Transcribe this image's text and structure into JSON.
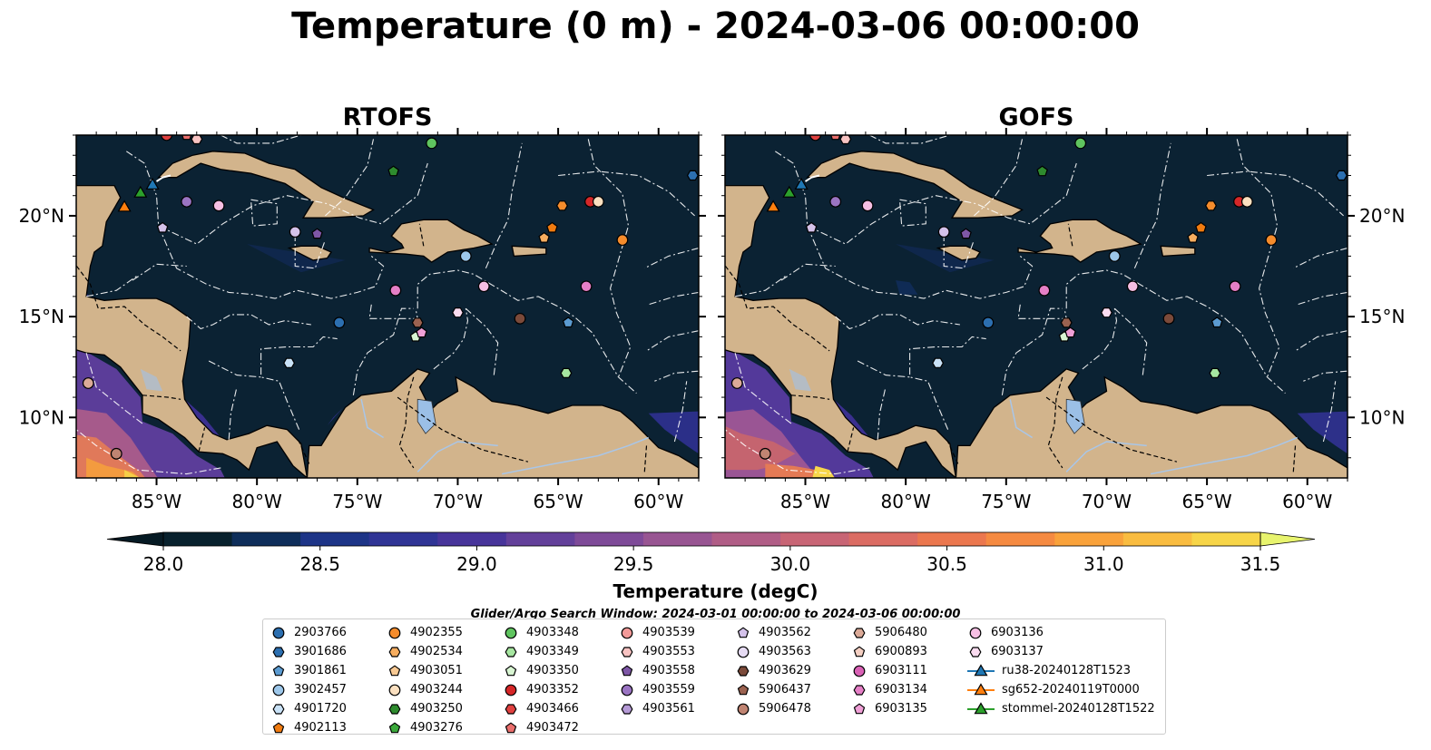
{
  "figure": {
    "title": "Temperature (0 m) - 2024-03-06 00:00:00",
    "search_window": "Glider/Argo Search Window: 2024-03-01 00:00:00 to 2024-03-06 00:00:00"
  },
  "colors": {
    "land": "#d2b48c",
    "ocean_base": "#0b2233",
    "lakes": "#9bbfe6",
    "rivers": "#a9c6e8",
    "eez_lines": "#ffffff"
  },
  "chart_data": [
    {
      "type": "map",
      "title": "RTOFS",
      "xlim": [
        -89,
        -58
      ],
      "ylim": [
        7,
        24
      ],
      "xticks": [
        "85°W",
        "80°W",
        "75°W",
        "70°W",
        "65°W",
        "60°W"
      ],
      "yticks": [
        "20°N",
        "15°N",
        "10°N"
      ]
    },
    {
      "type": "map",
      "title": "GOFS",
      "xlim": [
        -89,
        -58
      ],
      "ylim": [
        7,
        24
      ],
      "xticks": [
        "85°W",
        "80°W",
        "75°W",
        "70°W",
        "65°W",
        "60°W"
      ],
      "yticks": [
        "20°N",
        "15°N",
        "10°N"
      ]
    }
  ],
  "colorbar": {
    "label": "Temperature (degC)",
    "min": 28.0,
    "max": 31.5,
    "step": 0.25,
    "extend": "both",
    "ticks": [
      "28.0",
      "28.5",
      "29.0",
      "29.5",
      "30.0",
      "30.5",
      "31.0",
      "31.5"
    ],
    "colors": [
      "#08212d",
      "#0e2e5a",
      "#1d3487",
      "#2f3495",
      "#47349a",
      "#63409a",
      "#7e4a98",
      "#985592",
      "#b05d86",
      "#c86575",
      "#db6c63",
      "#eb774e",
      "#f58a41",
      "#f9a23b",
      "#f9bc40",
      "#f7d548"
    ],
    "under_color": "#061a24",
    "over_color": "#e8f46e"
  },
  "legend": {
    "columns": [
      [
        {
          "label": "2903766",
          "marker": "circle",
          "color": "#2c6fb0"
        },
        {
          "label": "3901686",
          "marker": "hexagon",
          "color": "#2c6fb0"
        },
        {
          "label": "3901861",
          "marker": "pentagon",
          "color": "#5b9bd1"
        },
        {
          "label": "3902457",
          "marker": "circle",
          "color": "#9dc7ea"
        },
        {
          "label": "4901720",
          "marker": "hexagon",
          "color": "#c9e2f7"
        },
        {
          "label": "4902113",
          "marker": "pentagon",
          "color": "#f07b10"
        }
      ],
      [
        {
          "label": "4902355",
          "marker": "circle",
          "color": "#f58c2c"
        },
        {
          "label": "4902534",
          "marker": "hexagon",
          "color": "#f6ad5f"
        },
        {
          "label": "4903051",
          "marker": "pentagon",
          "color": "#f8c993"
        },
        {
          "label": "4903244",
          "marker": "circle",
          "color": "#fbe0c0"
        },
        {
          "label": "4903250",
          "marker": "hexagon",
          "color": "#2e8b2e"
        },
        {
          "label": "4903276",
          "marker": "pentagon",
          "color": "#3aa83a"
        }
      ],
      [
        {
          "label": "4903348",
          "marker": "circle",
          "color": "#5fc45f"
        },
        {
          "label": "4903349",
          "marker": "hexagon",
          "color": "#a6e6a0"
        },
        {
          "label": "4903350",
          "marker": "pentagon",
          "color": "#d8f5d2"
        },
        {
          "label": "4903352",
          "marker": "circle",
          "color": "#d62728"
        },
        {
          "label": "4903466",
          "marker": "hexagon",
          "color": "#e0403f"
        },
        {
          "label": "4903472",
          "marker": "pentagon",
          "color": "#ea6e6c"
        }
      ],
      [
        {
          "label": "4903539",
          "marker": "circle",
          "color": "#f29a99"
        },
        {
          "label": "4903553",
          "marker": "hexagon",
          "color": "#f8c3c2"
        },
        {
          "label": "4903558",
          "marker": "pentagon",
          "color": "#7e57a6"
        },
        {
          "label": "4903559",
          "marker": "circle",
          "color": "#9a74c2"
        },
        {
          "label": "4903561",
          "marker": "hexagon",
          "color": "#b59ad6"
        }
      ],
      [
        {
          "label": "4903562",
          "marker": "pentagon",
          "color": "#d4c2ea"
        },
        {
          "label": "4903563",
          "marker": "circle",
          "color": "#e6dbf3"
        },
        {
          "label": "4903629",
          "marker": "hexagon",
          "color": "#7b4a3a"
        },
        {
          "label": "5906437",
          "marker": "pentagon",
          "color": "#9b6250"
        },
        {
          "label": "5906478",
          "marker": "circle",
          "color": "#c08472"
        }
      ],
      [
        {
          "label": "5906480",
          "marker": "hexagon",
          "color": "#dbaa98"
        },
        {
          "label": "6900893",
          "marker": "pentagon",
          "color": "#f4cfc2"
        },
        {
          "label": "6903111",
          "marker": "circle",
          "color": "#d961b5"
        },
        {
          "label": "6903134",
          "marker": "hexagon",
          "color": "#e57fc6"
        },
        {
          "label": "6903135",
          "marker": "pentagon",
          "color": "#ef9fd6"
        }
      ],
      [
        {
          "label": "6903136",
          "marker": "circle",
          "color": "#f6bfe3"
        },
        {
          "label": "6903137",
          "marker": "hexagon",
          "color": "#fbdcf0"
        },
        {
          "label": "ru38-20240128T1523",
          "marker": "triangle",
          "color": "#1f77b4"
        },
        {
          "label": "sg652-20240119T0000",
          "marker": "triangle",
          "color": "#ff7f0e"
        },
        {
          "label": "stommel-20240128T1522",
          "marker": "triangle",
          "color": "#2ca02c"
        }
      ]
    ]
  },
  "floats": [
    {
      "lon": -84.5,
      "lat": 24.0,
      "marker": "circle",
      "color": "#e0403f"
    },
    {
      "lon": -83.5,
      "lat": 24.0,
      "marker": "pentagon",
      "color": "#ea6e6c"
    },
    {
      "lon": -83.0,
      "lat": 23.8,
      "marker": "hexagon",
      "color": "#f8c3c2"
    },
    {
      "lon": -71.3,
      "lat": 23.6,
      "marker": "circle",
      "color": "#5fc45f"
    },
    {
      "lon": -73.2,
      "lat": 22.2,
      "marker": "pentagon",
      "color": "#2e8b2e"
    },
    {
      "lon": -58.3,
      "lat": 22.0,
      "marker": "hexagon",
      "color": "#2c6fb0"
    },
    {
      "lon": -83.5,
      "lat": 20.7,
      "marker": "circle",
      "color": "#9a74c2"
    },
    {
      "lon": -81.9,
      "lat": 20.5,
      "marker": "circle",
      "color": "#f6bfe3"
    },
    {
      "lon": -64.8,
      "lat": 20.5,
      "marker": "hexagon",
      "color": "#f58c2c"
    },
    {
      "lon": -63.4,
      "lat": 20.7,
      "marker": "circle",
      "color": "#d62728"
    },
    {
      "lon": -63.0,
      "lat": 20.7,
      "marker": "circle",
      "color": "#fbe0c0"
    },
    {
      "lon": -84.7,
      "lat": 19.4,
      "marker": "pentagon",
      "color": "#d4c2ea"
    },
    {
      "lon": -78.1,
      "lat": 19.2,
      "marker": "circle",
      "color": "#d4c2ea"
    },
    {
      "lon": -77.0,
      "lat": 19.1,
      "marker": "pentagon",
      "color": "#7e57a6"
    },
    {
      "lon": -65.3,
      "lat": 19.4,
      "marker": "pentagon",
      "color": "#f07b10"
    },
    {
      "lon": -65.7,
      "lat": 18.9,
      "marker": "pentagon",
      "color": "#f6ad5f"
    },
    {
      "lon": -61.8,
      "lat": 18.8,
      "marker": "circle",
      "color": "#f58c2c"
    },
    {
      "lon": -69.6,
      "lat": 18.0,
      "marker": "circle",
      "color": "#9dc7ea"
    },
    {
      "lon": -73.1,
      "lat": 16.3,
      "marker": "circle",
      "color": "#e57fc6"
    },
    {
      "lon": -68.7,
      "lat": 16.5,
      "marker": "circle",
      "color": "#f6bfe3"
    },
    {
      "lon": -63.6,
      "lat": 16.5,
      "marker": "circle",
      "color": "#e57fc6"
    },
    {
      "lon": -70.0,
      "lat": 15.2,
      "marker": "hexagon",
      "color": "#fbdcf0"
    },
    {
      "lon": -75.9,
      "lat": 14.7,
      "marker": "circle",
      "color": "#2c6fb0"
    },
    {
      "lon": -72.0,
      "lat": 14.7,
      "marker": "hexagon",
      "color": "#9b6250"
    },
    {
      "lon": -66.9,
      "lat": 14.9,
      "marker": "circle",
      "color": "#7b4a3a"
    },
    {
      "lon": -64.5,
      "lat": 14.7,
      "marker": "pentagon",
      "color": "#5b9bd1"
    },
    {
      "lon": -72.1,
      "lat": 14.0,
      "marker": "pentagon",
      "color": "#d8f5d2"
    },
    {
      "lon": -71.8,
      "lat": 14.2,
      "marker": "pentagon",
      "color": "#ef9fd6"
    },
    {
      "lon": -78.4,
      "lat": 12.7,
      "marker": "hexagon",
      "color": "#c9e2f7"
    },
    {
      "lon": -64.6,
      "lat": 12.2,
      "marker": "hexagon",
      "color": "#a6e6a0"
    },
    {
      "lon": -88.4,
      "lat": 11.7,
      "marker": "circle",
      "color": "#dbaa98"
    },
    {
      "lon": -87.0,
      "lat": 8.2,
      "marker": "circle",
      "color": "#c08472"
    }
  ],
  "gliders": [
    {
      "lon": -85.2,
      "lat": 21.5,
      "color": "#1f77b4"
    },
    {
      "lon": -86.6,
      "lat": 20.4,
      "color": "#ff7f0e"
    },
    {
      "lon": -85.8,
      "lat": 21.1,
      "color": "#2ca02c"
    }
  ]
}
